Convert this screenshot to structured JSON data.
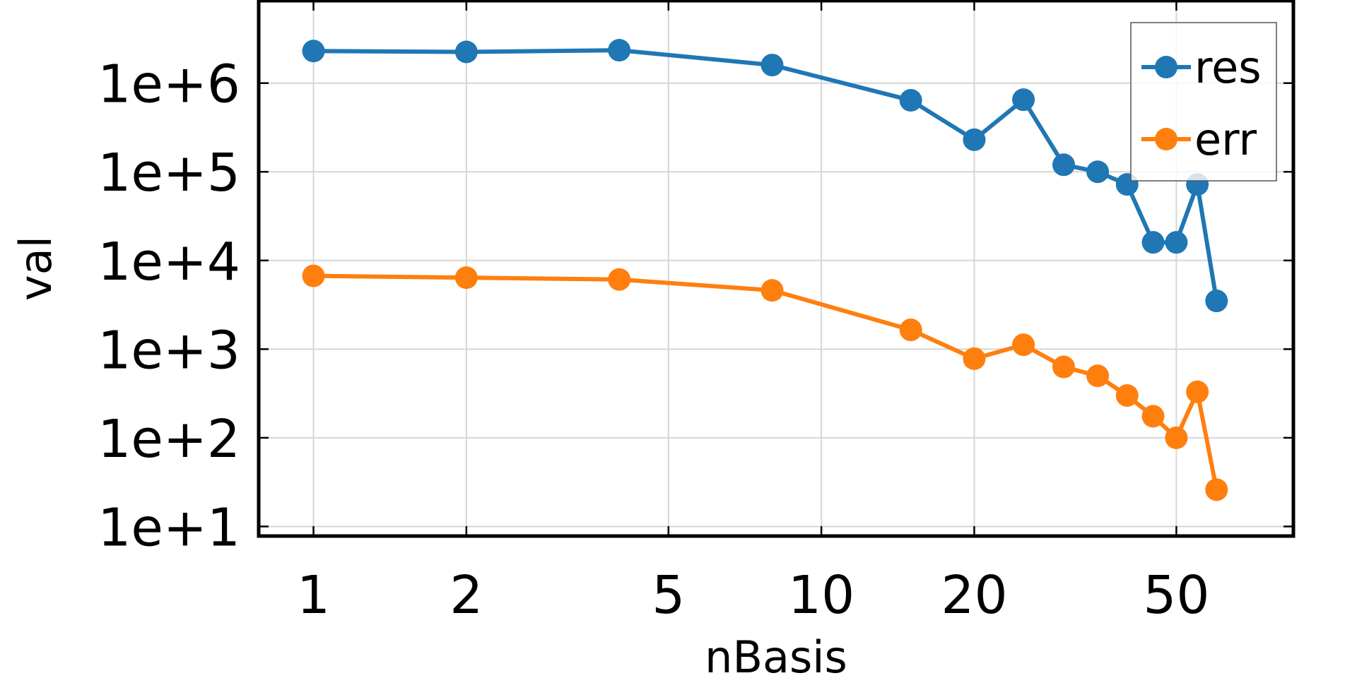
{
  "chart_data": {
    "type": "line",
    "xlabel": "nBasis",
    "ylabel": "val",
    "x_scale": "log",
    "y_scale": "log",
    "xlim": [
      0.78,
      85
    ],
    "ylim": [
      7.8,
      8500000
    ],
    "x_ticks": [
      1,
      2,
      5,
      10,
      20,
      50
    ],
    "x_tick_labels": [
      "1",
      "2",
      "5",
      "10",
      "20",
      "50"
    ],
    "y_ticks": [
      10,
      100,
      1000,
      10000,
      100000,
      1000000
    ],
    "y_tick_labels": [
      "1e+1",
      "1e+2",
      "1e+3",
      "1e+4",
      "1e+5",
      "1e+6"
    ],
    "grid": true,
    "legend_position": "top-right",
    "x": [
      1,
      2,
      4,
      8,
      15,
      20,
      25,
      30,
      35,
      40,
      45,
      50,
      55,
      60
    ],
    "series": [
      {
        "name": "res",
        "color": "#1f77b4",
        "values": [
          2300000,
          2250000,
          2350000,
          1600000,
          640000,
          230000,
          650000,
          120000,
          100000,
          72000,
          16000,
          16000,
          72000,
          3500
        ]
      },
      {
        "name": "err",
        "color": "#ff7f0e",
        "values": [
          6700,
          6400,
          6100,
          4600,
          1650,
          780,
          1120,
          630,
          500,
          300,
          175,
          100,
          330,
          26
        ]
      }
    ]
  }
}
